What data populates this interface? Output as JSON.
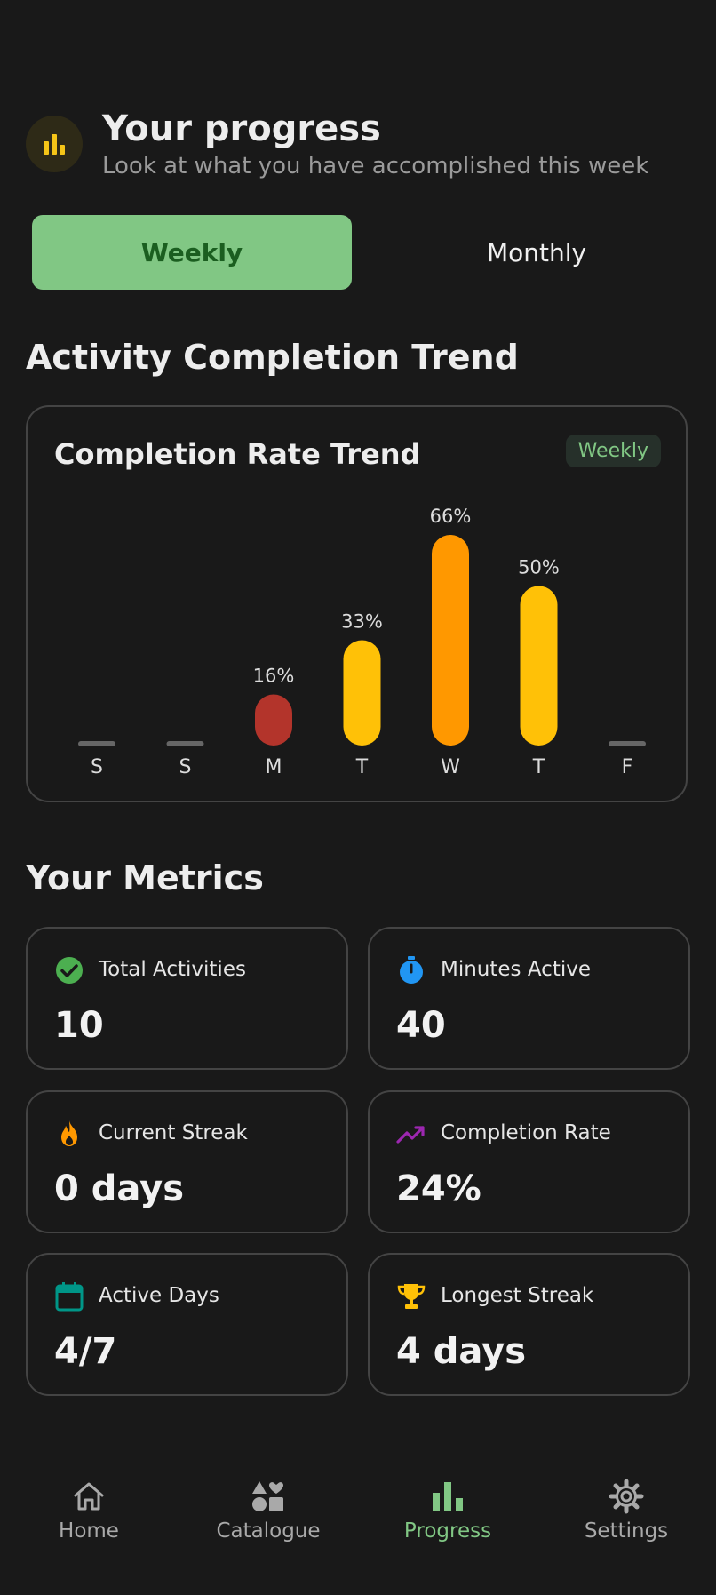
{
  "header": {
    "title": "Your progress",
    "subtitle": "Look at what you have accomplished this week",
    "icon": "bar-chart-icon",
    "icon_color": "#f5c518"
  },
  "tabs": [
    {
      "label": "Weekly",
      "active": true
    },
    {
      "label": "Monthly",
      "active": false
    }
  ],
  "activity_section": {
    "title": "Activity Completion Trend"
  },
  "chart_card": {
    "title": "Completion Rate Trend",
    "badge": "Weekly"
  },
  "chart_data": {
    "type": "bar",
    "categories": [
      "S",
      "S",
      "M",
      "T",
      "W",
      "T",
      "F"
    ],
    "values": [
      0,
      0,
      16,
      33,
      66,
      50,
      0
    ],
    "labels": [
      "",
      "",
      "16%",
      "33%",
      "66%",
      "50%",
      ""
    ],
    "title": "Completion Rate Trend",
    "ylim": [
      0,
      66
    ],
    "colors": [
      "#666666",
      "#666666",
      "#b3342b",
      "#ffc107",
      "#ff9800",
      "#ffc107",
      "#666666"
    ],
    "grid": false
  },
  "metrics_section": {
    "title": "Your Metrics"
  },
  "metrics": [
    {
      "label": "Total Activities",
      "value": "10",
      "icon": "check-circle-icon",
      "color": "#4caf50"
    },
    {
      "label": "Minutes Active",
      "value": "40",
      "icon": "stopwatch-icon",
      "color": "#2196f3"
    },
    {
      "label": "Current Streak",
      "value": "0 days",
      "icon": "flame-icon",
      "color": "#ff9800"
    },
    {
      "label": "Completion Rate",
      "value": "24%",
      "icon": "trending-up-icon",
      "color": "#9c27b0"
    },
    {
      "label": "Active Days",
      "value": "4/7",
      "icon": "calendar-icon",
      "color": "#009688"
    },
    {
      "label": "Longest Streak",
      "value": "4 days",
      "icon": "trophy-icon",
      "color": "#ffc107"
    }
  ],
  "nav": [
    {
      "label": "Home",
      "icon": "home-icon",
      "active": false
    },
    {
      "label": "Catalogue",
      "icon": "shapes-icon",
      "active": false
    },
    {
      "label": "Progress",
      "icon": "bar-chart-icon",
      "active": true
    },
    {
      "label": "Settings",
      "icon": "gear-icon",
      "active": false
    }
  ],
  "colors": {
    "background": "#191919",
    "accent": "#81c784",
    "accent_dark": "#1b5e20",
    "card_border": "#444444"
  }
}
